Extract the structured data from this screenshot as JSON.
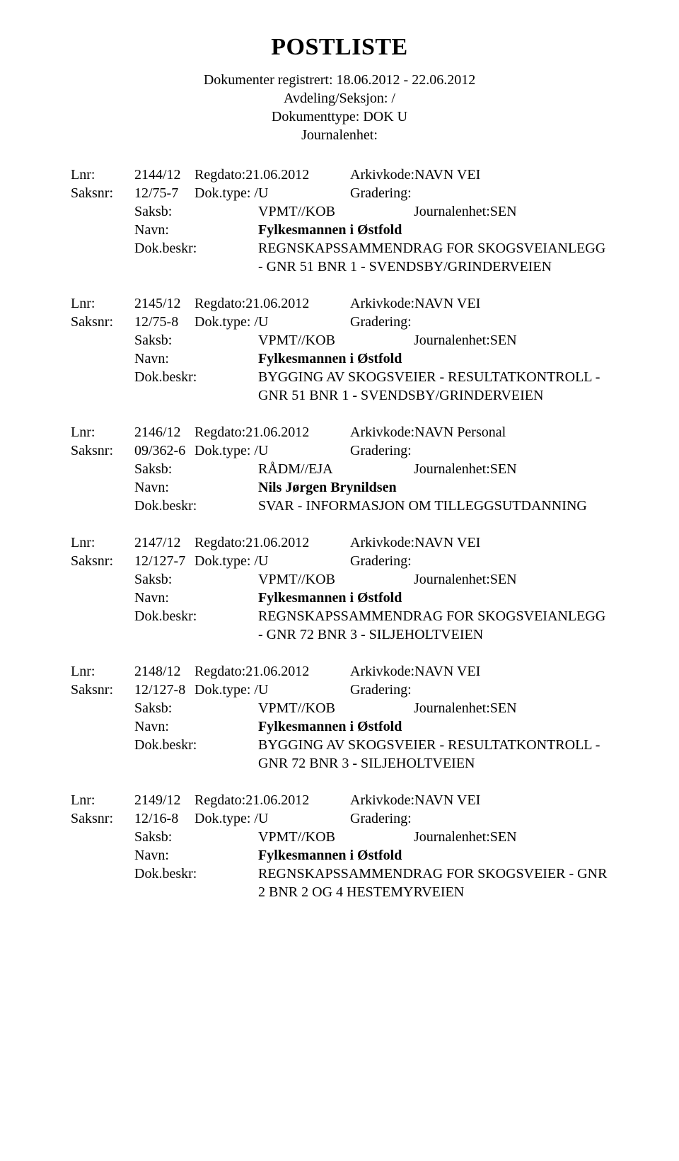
{
  "title": "POSTLISTE",
  "header": {
    "line1": "Dokumenter registrert: 18.06.2012 - 22.06.2012",
    "line2": "Avdeling/Seksjon: /",
    "line3": "Dokumenttype: DOK U",
    "line4": "Journalenhet:"
  },
  "labels": {
    "lnr": "Lnr:",
    "saksnr": "Saksnr:",
    "regdato": "Regdato:",
    "arkivkode": "Arkivkode:",
    "doktype": "Dok.type:",
    "gradering": "Gradering:",
    "saksb": "Saksb:",
    "journalenhet": "Journalenhet:",
    "navn": "Navn:",
    "dokbeskr": "Dok.beskr:"
  },
  "entries": [
    {
      "lnr": "2144/12",
      "regdato": "21.06.2012",
      "arkivkode": "NAVN VEI",
      "saksnr": "12/75-7",
      "doktype": "/U",
      "gradering": "",
      "saksb": "VPMT//KOB",
      "journalenhet": "SEN",
      "navn": "Fylkesmannen i Østfold",
      "beskr": "REGNSKAPSSAMMENDRAG FOR SKOGSVEIANLEGG - GNR 51 BNR 1 - SVENDSBY/GRINDERVEIEN"
    },
    {
      "lnr": "2145/12",
      "regdato": "21.06.2012",
      "arkivkode": "NAVN VEI",
      "saksnr": "12/75-8",
      "doktype": "/U",
      "gradering": "",
      "saksb": "VPMT//KOB",
      "journalenhet": "SEN",
      "navn": "Fylkesmannen i Østfold",
      "beskr": "BYGGING AV SKOGSVEIER - RESULTATKONTROLL - GNR 51 BNR 1 - SVENDSBY/GRINDERVEIEN"
    },
    {
      "lnr": "2146/12",
      "regdato": "21.06.2012",
      "arkivkode": "NAVN Personal",
      "saksnr": "09/362-6",
      "doktype": "/U",
      "gradering": "",
      "saksb": "RÅDM//EJA",
      "journalenhet": "SEN",
      "navn": "Nils Jørgen Brynildsen",
      "beskr": "SVAR - INFORMASJON OM TILLEGGSUTDANNING"
    },
    {
      "lnr": "2147/12",
      "regdato": "21.06.2012",
      "arkivkode": "NAVN VEI",
      "saksnr": "12/127-7",
      "doktype": "/U",
      "gradering": "",
      "saksb": "VPMT//KOB",
      "journalenhet": "SEN",
      "navn": "Fylkesmannen i Østfold",
      "beskr": "REGNSKAPSSAMMENDRAG FOR SKOGSVEIANLEGG - GNR 72 BNR 3 - SILJEHOLTVEIEN"
    },
    {
      "lnr": "2148/12",
      "regdato": "21.06.2012",
      "arkivkode": "NAVN VEI",
      "saksnr": "12/127-8",
      "doktype": "/U",
      "gradering": "",
      "saksb": "VPMT//KOB",
      "journalenhet": "SEN",
      "navn": "Fylkesmannen i Østfold",
      "beskr": "BYGGING AV SKOGSVEIER - RESULTATKONTROLL - GNR 72 BNR 3 - SILJEHOLTVEIEN"
    },
    {
      "lnr": "2149/12",
      "regdato": "21.06.2012",
      "arkivkode": "NAVN VEI",
      "saksnr": "12/16-8",
      "doktype": "/U",
      "gradering": "",
      "saksb": "VPMT//KOB",
      "journalenhet": "SEN",
      "navn": "Fylkesmannen i Østfold",
      "beskr": "REGNSKAPSSAMMENDRAG FOR SKOGSVEIER - GNR 2 BNR 2 OG 4  HESTEMYRVEIEN"
    }
  ]
}
